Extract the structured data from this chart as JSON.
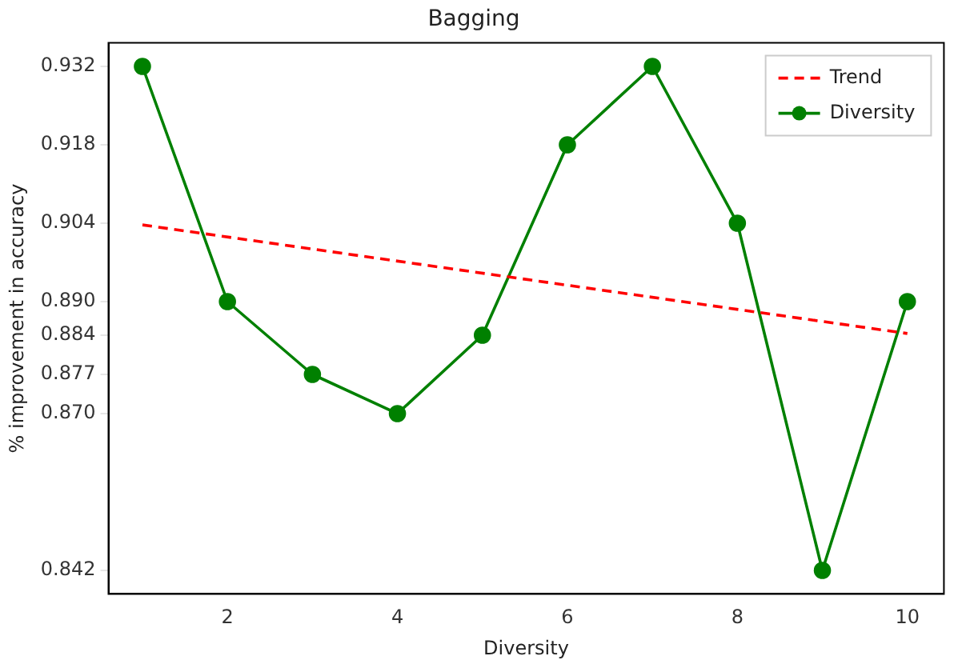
{
  "chart_data": {
    "type": "line",
    "title": "Bagging",
    "xlabel": "Diversity",
    "ylabel": "% improvement in accuracy",
    "xlim": [
      0.6,
      10.43
    ],
    "xticks": [
      2,
      4,
      6,
      8,
      10
    ],
    "ylim": [
      0.8378,
      0.9362
    ],
    "yticks": [
      {
        "value": 0.842,
        "label": "0.842"
      },
      {
        "value": 0.87,
        "label": "0.870"
      },
      {
        "value": 0.877,
        "label": "0.877"
      },
      {
        "value": 0.884,
        "label": "0.884"
      },
      {
        "value": 0.89,
        "label": "0.890"
      },
      {
        "value": 0.904,
        "label": "0.904"
      },
      {
        "value": 0.918,
        "label": "0.918"
      },
      {
        "value": 0.932,
        "label": "0.932"
      }
    ],
    "legend": "top right",
    "grid": false,
    "series": [
      {
        "name": "Trend",
        "color": "#ff0000",
        "x": [
          1,
          10
        ],
        "values": [
          0.9037,
          0.8843
        ],
        "line_style": "dashed",
        "marker": "none"
      },
      {
        "name": "Diversity",
        "color": "#008000",
        "x": [
          1,
          2,
          3,
          4,
          5,
          6,
          7,
          8,
          9,
          10
        ],
        "values": [
          0.932,
          0.89,
          0.877,
          0.87,
          0.884,
          0.918,
          0.932,
          0.904,
          0.842,
          0.89
        ],
        "line_style": "solid",
        "marker": "circle"
      }
    ]
  }
}
